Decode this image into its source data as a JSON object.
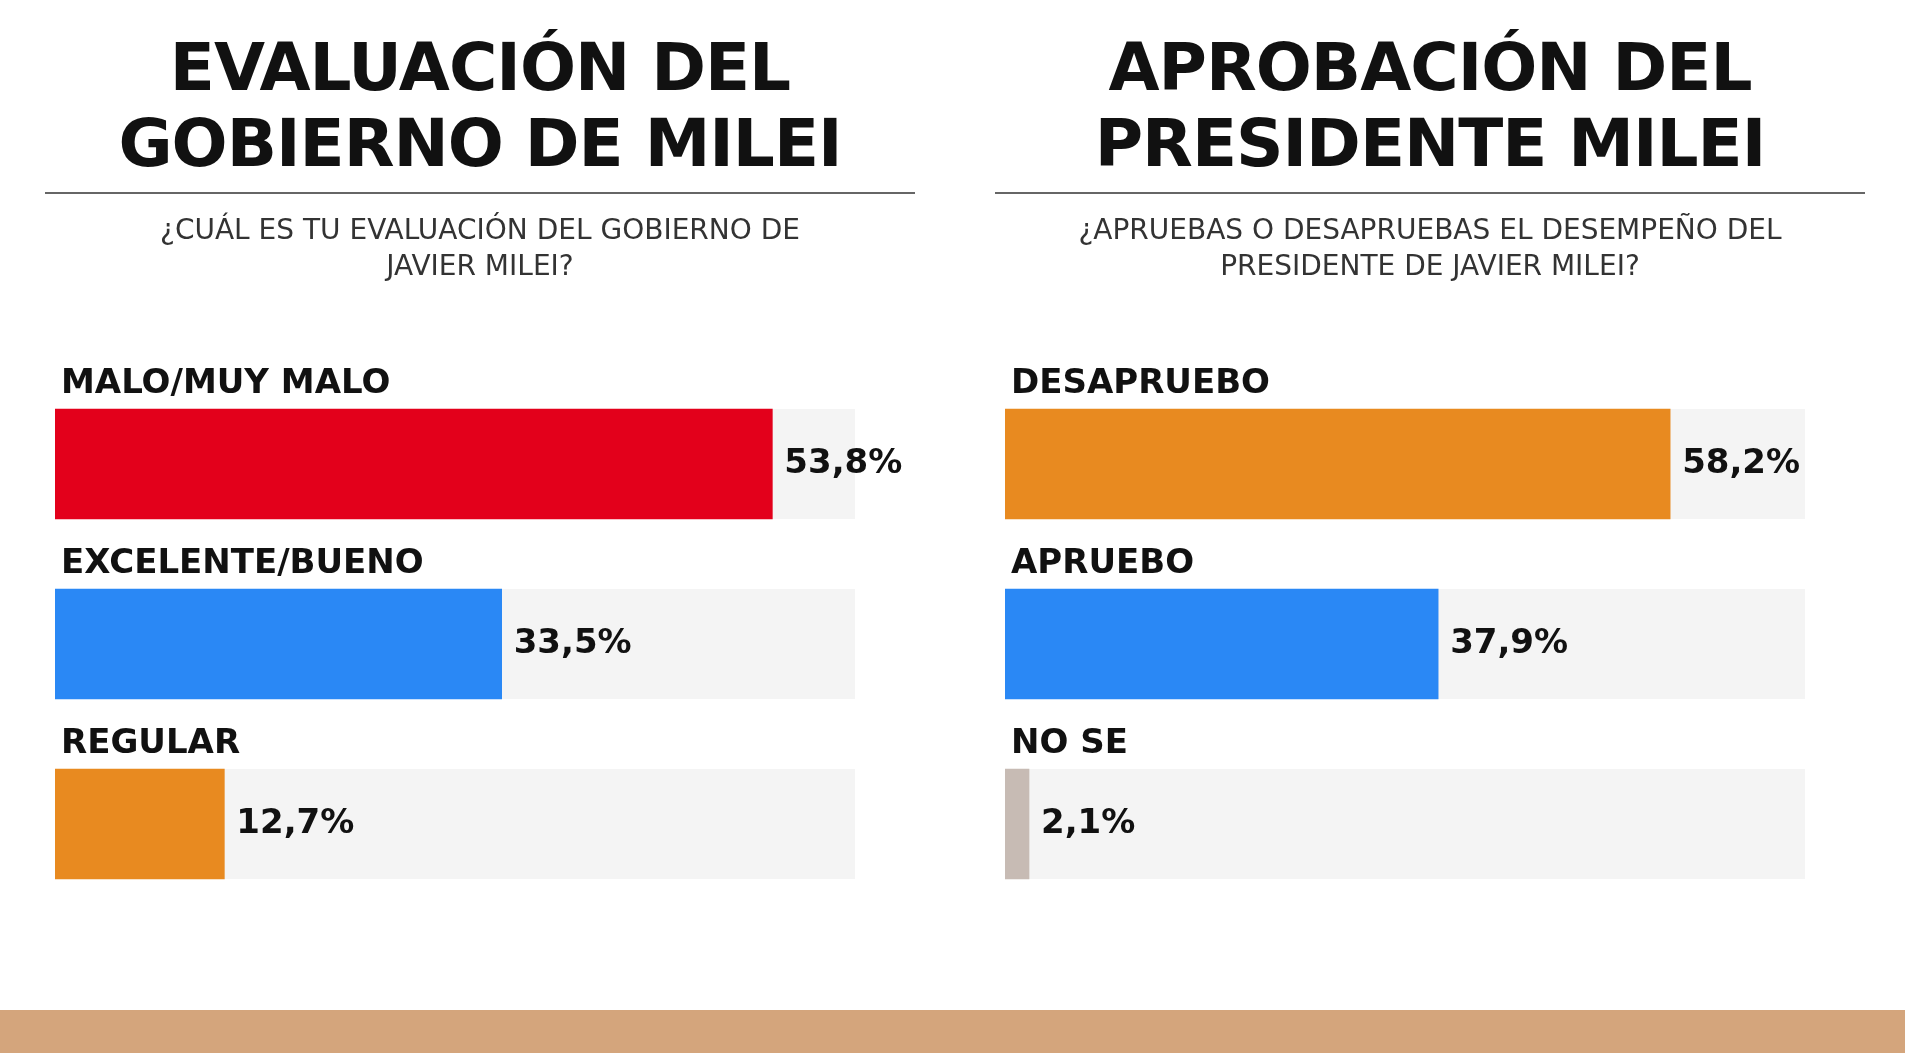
{
  "chart_data": [
    {
      "type": "bar",
      "orientation": "horizontal",
      "title": "EVALUACIÓN DEL GOBIERNO DE MILEI",
      "subtitle": "¿CUÁL ES TU EVALUACIÓN DEL GOBIERNO DE JAVIER MILEI?",
      "categories": [
        "MALO/MUY MALO",
        "EXCELENTE/BUENO",
        "REGULAR"
      ],
      "values": [
        53.8,
        33.5,
        12.7
      ],
      "colors": [
        "#e3001b",
        "#2a88f5",
        "#e88a20"
      ],
      "value_labels": [
        "53,8%",
        "33,5%",
        "12,7%"
      ],
      "xlim": [
        0,
        60
      ]
    },
    {
      "type": "bar",
      "orientation": "horizontal",
      "title": "APROBACIÓN DEL PRESIDENTE MILEI",
      "subtitle": "¿APRUEBAS O DESAPRUEBAS EL DESEMPEÑO DEL PRESIDENTE DE JAVIER MILEI?",
      "categories": [
        "DESAPRUEBO",
        "APRUEBO",
        "NO SE"
      ],
      "values": [
        58.2,
        37.9,
        2.1
      ],
      "colors": [
        "#e88a20",
        "#2a88f5",
        "#c7bbb4"
      ],
      "value_labels": [
        "58,2%",
        "37,9%",
        "2,1%"
      ],
      "xlim": [
        0,
        70
      ]
    }
  ]
}
